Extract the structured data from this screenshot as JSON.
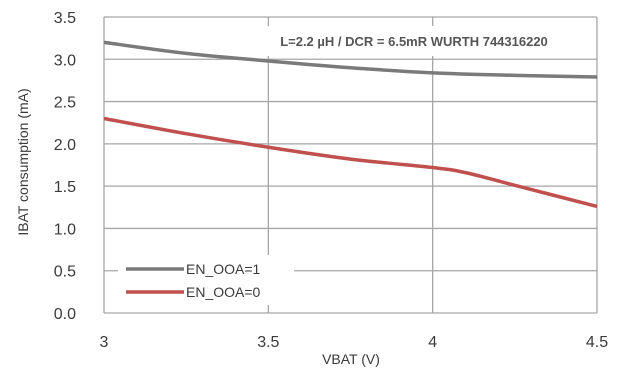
{
  "chart_data": {
    "type": "line",
    "title": "",
    "xlabel": "VBAT (V)",
    "ylabel": "IBAT consumption (mA)",
    "xlim": [
      3,
      4.5
    ],
    "ylim": [
      0,
      3.5
    ],
    "xticks": [
      "3",
      "3.5",
      "4",
      "4.5"
    ],
    "yticks": [
      "0.0",
      "0.5",
      "1.0",
      "1.5",
      "2.0",
      "2.5",
      "3.0",
      "3.5"
    ],
    "grid": true,
    "legend_position": "bottom-left",
    "annotation": "L=2.2 µH / DCR = 6.5mR WURTH 744316220",
    "series": [
      {
        "name": "EN_OOA=1",
        "color": "#7a7a7a",
        "x": [
          3.0,
          3.25,
          3.5,
          3.75,
          4.0,
          4.25,
          4.5
        ],
        "y": [
          3.2,
          3.07,
          2.98,
          2.9,
          2.84,
          2.81,
          2.79
        ]
      },
      {
        "name": "EN_OOA=0",
        "color": "#c0504d",
        "x": [
          3.0,
          3.25,
          3.5,
          3.75,
          4.0,
          4.1,
          4.25,
          4.5
        ],
        "y": [
          2.3,
          2.12,
          1.96,
          1.82,
          1.72,
          1.66,
          1.51,
          1.26
        ]
      }
    ]
  }
}
